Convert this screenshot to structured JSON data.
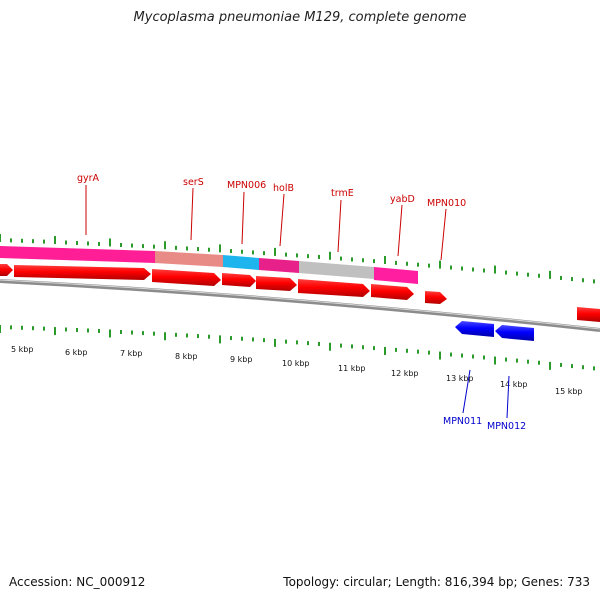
{
  "title": "Mycoplasma pneumoniae M129, complete genome",
  "colors": {
    "forward_gene": "#ff0000",
    "reverse_gene": "#0000ff",
    "forward_label": "#cc0000",
    "reverse_label": "#0000cc",
    "tick": "#2a9a2a",
    "backbone": "#888888"
  },
  "tick_labels": [
    "5 kbp",
    "6 kbp",
    "7 kbp",
    "8 kbp",
    "9 kbp",
    "10 kbp",
    "11 kbp",
    "12 kbp",
    "13 kbp",
    "14 kbp",
    "15 kbp"
  ],
  "gene_labels_forward": [
    "gyrA",
    "serS",
    "MPN006",
    "holB",
    "trmE",
    "yabD",
    "MPN010"
  ],
  "gene_labels_reverse": [
    "MPN011",
    "MPN012"
  ],
  "footer": {
    "accession": "Accession: NC_000912",
    "summary": "Topology: circular; Length: 816,394 bp; Genes: 733"
  }
}
